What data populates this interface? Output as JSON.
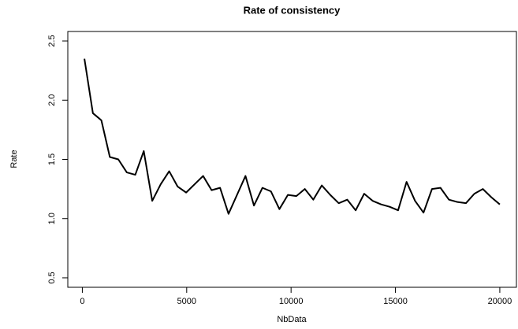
{
  "chart_data": {
    "type": "line",
    "title": "Rate of consistency",
    "x_label": "NbData",
    "y_label": "Rate",
    "x": [
      100,
      506,
      912,
      1318,
      1724,
      2131,
      2537,
      2943,
      3349,
      3755,
      4161,
      4567,
      4973,
      5380,
      5786,
      6192,
      6598,
      7004,
      7410,
      7816,
      8222,
      8629,
      9035,
      9441,
      9847,
      10253,
      10659,
      11065,
      11471,
      11878,
      12284,
      12690,
      13096,
      13502,
      13908,
      14314,
      14720,
      15127,
      15533,
      15939,
      16345,
      16751,
      17157,
      17563,
      17969,
      18376,
      18782,
      19188,
      19594,
      20000
    ],
    "series": [
      {
        "color": "#000000",
        "values": [
          2.35,
          1.89,
          1.83,
          1.52,
          1.5,
          1.39,
          1.37,
          1.57,
          1.15,
          1.29,
          1.4,
          1.27,
          1.22,
          1.29,
          1.36,
          1.24,
          1.26,
          1.04,
          1.2,
          1.36,
          1.11,
          1.26,
          1.23,
          1.08,
          1.2,
          1.19,
          1.25,
          1.16,
          1.28,
          1.2,
          1.13,
          1.16,
          1.07,
          1.21,
          1.15,
          1.12,
          1.1,
          1.07,
          1.31,
          1.15,
          1.05,
          1.25,
          1.26,
          1.16,
          1.14,
          1.13,
          1.21,
          1.25,
          1.18,
          1.12
        ]
      }
    ],
    "xlim": [
      -696,
      20796
    ],
    "ylim": [
      0.42,
      2.58
    ],
    "xticks": [
      0,
      5000,
      10000,
      15000,
      20000
    ],
    "yticks": [
      0.5,
      {
        "value": 1,
        "label": "1.0"
      },
      1.5,
      {
        "value": 2,
        "label": "2.0"
      },
      2.5
    ]
  }
}
